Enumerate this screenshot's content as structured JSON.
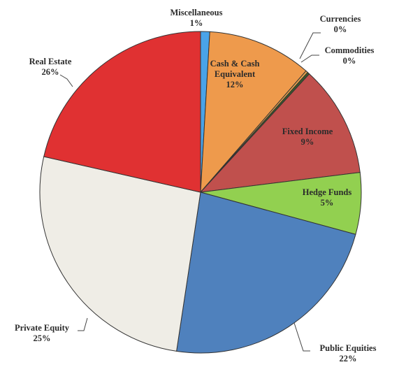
{
  "chart_data": {
    "type": "pie",
    "title": "",
    "categories": [
      "Miscellaneous",
      "Cash & Cash Equivalent",
      "Currencies",
      "Commodities",
      "Fixed Income",
      "Hedge Funds",
      "Public Equities",
      "Private Equity",
      "Real Estate"
    ],
    "values": [
      1,
      12,
      0,
      0,
      9,
      5,
      22,
      25,
      26
    ],
    "value_labels": [
      "1%",
      "12%",
      "0%",
      "0%",
      "9%",
      "5%",
      "22%",
      "25%",
      "26%"
    ],
    "colors": [
      "#4aa3e8",
      "#ee9a4c",
      "#e8a24a",
      "#3d5a2a",
      "#c0504d",
      "#92d050",
      "#4f81bd",
      "#efede6",
      "#e03132"
    ],
    "slice_text_color": [
      "#2b2b2b",
      "#ffffff",
      "#2b2b2b",
      "#2b2b2b",
      "#5a1010",
      "#2b2b2b",
      "#2b2b2b",
      "#2b2b2b",
      "#2b2b2b"
    ],
    "legend": "none",
    "label_style": "inside and outside with leader lines"
  }
}
